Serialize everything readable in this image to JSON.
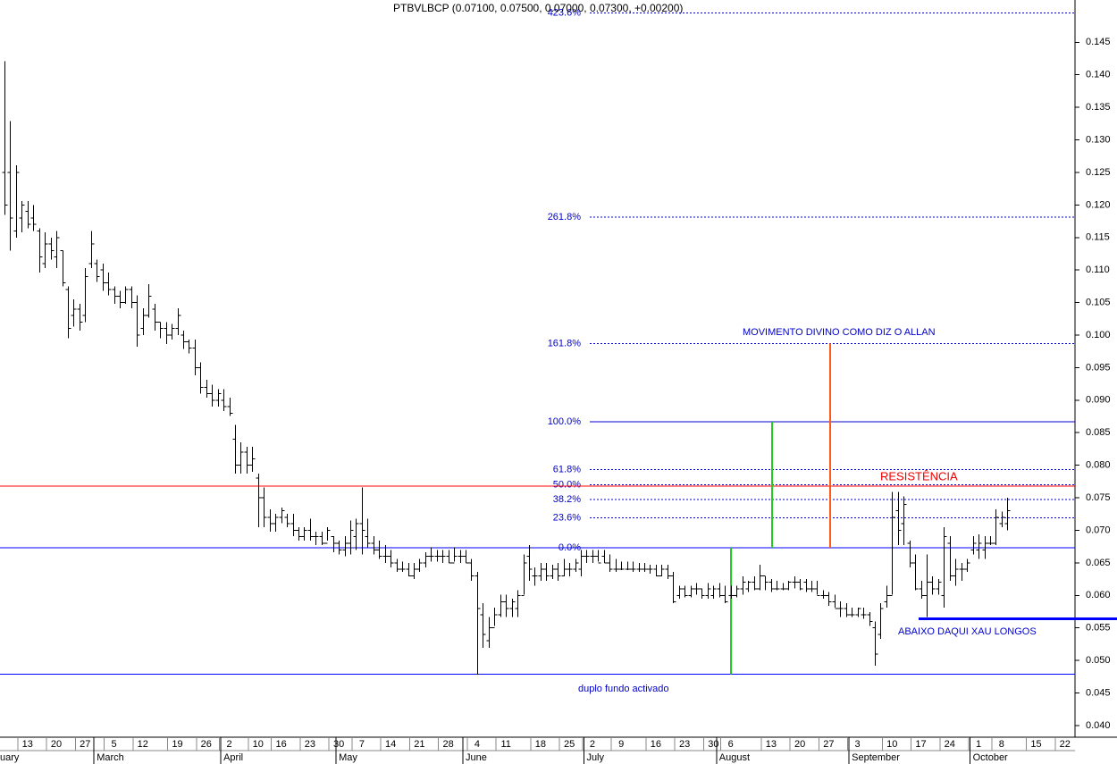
{
  "chart_data": {
    "type": "ohlc",
    "title": "PTBVLBCP (0.07100, 0.07500, 0.07000, 0.07300, +0.00200)",
    "categories": [
      null,
      null,
      null,
      null,
      "13",
      null,
      null,
      null,
      null,
      "20",
      null,
      null,
      null,
      null,
      "27",
      null,
      null,
      null,
      null,
      "5",
      null,
      null,
      null,
      null,
      "12",
      null,
      null,
      null,
      null,
      null,
      "19",
      null,
      null,
      null,
      null,
      "26",
      null,
      null,
      null,
      "2",
      null,
      null,
      null,
      null,
      "10",
      null,
      null,
      null,
      "16",
      null,
      null,
      null,
      null,
      "23",
      null,
      null,
      null,
      null,
      "30",
      null,
      null,
      null,
      "7",
      null,
      null,
      null,
      null,
      "14",
      null,
      null,
      null,
      null,
      "21",
      null,
      null,
      null,
      null,
      "28",
      null,
      null,
      null,
      null,
      "4",
      null,
      null,
      null,
      null,
      "11",
      null,
      null,
      null,
      null,
      null,
      "18",
      null,
      null,
      null,
      null,
      "25",
      null,
      null,
      null,
      "2",
      null,
      null,
      null,
      null,
      "9",
      null,
      null,
      null,
      null,
      null,
      "16",
      null,
      null,
      null,
      null,
      "23",
      null,
      null,
      null,
      null,
      "30",
      null,
      null,
      "6",
      null,
      null,
      null,
      null,
      null,
      null,
      "13",
      null,
      null,
      null,
      null,
      "20",
      null,
      null,
      null,
      null,
      "27",
      null,
      null,
      null,
      null,
      "3",
      null,
      null,
      null,
      null,
      null,
      "10",
      null,
      null,
      null,
      null,
      "17",
      null,
      null,
      null,
      null,
      "24",
      null,
      null,
      null,
      null,
      "1",
      null,
      null,
      null,
      "8",
      null,
      null,
      null,
      null,
      null,
      "15",
      null,
      null,
      null,
      null,
      "22"
    ],
    "months": [
      {
        "name": "uary",
        "start": 0
      },
      {
        "name": "March",
        "start": 16
      },
      {
        "name": "April",
        "start": 38
      },
      {
        "name": "May",
        "start": 58
      },
      {
        "name": "June",
        "start": 80
      },
      {
        "name": "July",
        "start": 101
      },
      {
        "name": "August",
        "start": 124
      },
      {
        "name": "September",
        "start": 147
      },
      {
        "name": "October",
        "start": 168
      }
    ],
    "ohlc": [
      [
        0.125,
        0.1421,
        0.1185,
        0.12
      ],
      [
        0.125,
        0.1329,
        0.113,
        0.118
      ],
      [
        0.116,
        0.1261,
        0.115,
        0.125
      ],
      [
        0.118,
        0.1206,
        0.1158,
        0.12
      ],
      [
        0.119,
        0.1206,
        0.1164,
        0.117
      ],
      [
        0.118,
        0.12,
        0.116,
        0.117
      ],
      [
        0.116,
        0.1164,
        0.1096,
        0.112
      ],
      [
        0.111,
        0.1158,
        0.1103,
        0.114
      ],
      [
        0.114,
        0.115,
        0.1116,
        0.113
      ],
      [
        0.112,
        0.116,
        0.1103,
        0.115
      ],
      [
        0.113,
        0.113,
        0.1075,
        0.108
      ],
      [
        0.107,
        0.1075,
        0.0995,
        0.101
      ],
      [
        0.103,
        0.1055,
        0.1013,
        0.104
      ],
      [
        0.104,
        0.1048,
        0.1007,
        0.102
      ],
      [
        0.103,
        0.1103,
        0.102,
        0.109
      ],
      [
        0.111,
        0.116,
        0.1103,
        0.114
      ],
      [
        0.111,
        0.1116,
        0.1082,
        0.109
      ],
      [
        0.11,
        0.111,
        0.1068,
        0.108
      ],
      [
        0.108,
        0.1096,
        0.1061,
        0.107
      ],
      [
        0.107,
        0.1075,
        0.1048,
        0.106
      ],
      [
        0.106,
        0.1068,
        0.1041,
        0.105
      ],
      [
        0.105,
        0.1075,
        0.1048,
        0.107
      ],
      [
        0.107,
        0.1075,
        0.1041,
        0.105
      ],
      [
        0.105,
        0.1061,
        0.0982,
        0.1
      ],
      [
        0.101,
        0.1041,
        0.1,
        0.103
      ],
      [
        0.103,
        0.1078,
        0.1027,
        0.106
      ],
      [
        0.104,
        0.1048,
        0.1007,
        0.102
      ],
      [
        0.102,
        0.102,
        0.0995,
        0.101
      ],
      [
        0.101,
        0.102,
        0.0986,
        0.1
      ],
      [
        0.1,
        0.1017,
        0.0993,
        0.101
      ],
      [
        0.101,
        0.1041,
        0.1,
        0.103
      ],
      [
        0.1,
        0.1007,
        0.0979,
        0.099
      ],
      [
        0.099,
        0.0993,
        0.0972,
        0.098
      ],
      [
        0.098,
        0.0993,
        0.0938,
        0.095
      ],
      [
        0.095,
        0.0958,
        0.091,
        0.092
      ],
      [
        0.092,
        0.0931,
        0.0904,
        0.091
      ],
      [
        0.091,
        0.0924,
        0.089,
        0.09
      ],
      [
        0.09,
        0.0917,
        0.089,
        0.091
      ],
      [
        0.09,
        0.0917,
        0.0883,
        0.089
      ],
      [
        0.089,
        0.0904,
        0.0876,
        0.088
      ],
      [
        0.084,
        0.0862,
        0.0787,
        0.08
      ],
      [
        0.08,
        0.0835,
        0.0787,
        0.082
      ],
      [
        0.082,
        0.0828,
        0.0787,
        0.08
      ],
      [
        0.08,
        0.0828,
        0.079,
        0.081
      ],
      [
        0.078,
        0.0787,
        0.0705,
        0.075
      ],
      [
        0.075,
        0.0766,
        0.0705,
        0.072
      ],
      [
        0.072,
        0.0732,
        0.0698,
        0.071
      ],
      [
        0.071,
        0.0725,
        0.0698,
        0.072
      ],
      [
        0.072,
        0.0735,
        0.0711,
        0.073
      ],
      [
        0.072,
        0.0725,
        0.0705,
        0.071
      ],
      [
        0.071,
        0.0725,
        0.0691,
        0.07
      ],
      [
        0.07,
        0.0705,
        0.0684,
        0.069
      ],
      [
        0.069,
        0.0705,
        0.0684,
        0.07
      ],
      [
        0.07,
        0.0718,
        0.0684,
        0.069
      ],
      [
        0.069,
        0.0698,
        0.0677,
        0.069
      ],
      [
        0.069,
        0.0698,
        0.0677,
        0.068
      ],
      [
        0.068,
        0.0705,
        0.0684,
        0.07
      ],
      [
        0.069,
        0.0691,
        0.0666,
        0.068
      ],
      [
        0.068,
        0.0684,
        0.0663,
        0.067
      ],
      [
        0.067,
        0.0691,
        0.066,
        0.068
      ],
      [
        0.068,
        0.0715,
        0.0663,
        0.07
      ],
      [
        0.069,
        0.0718,
        0.067,
        0.071
      ],
      [
        0.071,
        0.0766,
        0.0663,
        0.07
      ],
      [
        0.069,
        0.0718,
        0.0674,
        0.068
      ],
      [
        0.068,
        0.0691,
        0.0663,
        0.067
      ],
      [
        0.067,
        0.0684,
        0.0656,
        0.066
      ],
      [
        0.066,
        0.0677,
        0.065,
        0.066
      ],
      [
        0.066,
        0.067,
        0.0643,
        0.065
      ],
      [
        0.065,
        0.0656,
        0.0636,
        0.064
      ],
      [
        0.064,
        0.0652,
        0.0636,
        0.064
      ],
      [
        0.064,
        0.065,
        0.0629,
        0.063
      ],
      [
        0.063,
        0.065,
        0.0625,
        0.064
      ],
      [
        0.064,
        0.0656,
        0.0636,
        0.065
      ],
      [
        0.065,
        0.0666,
        0.0643,
        0.066
      ],
      [
        0.066,
        0.0674,
        0.0652,
        0.066
      ],
      [
        0.066,
        0.067,
        0.0652,
        0.066
      ],
      [
        0.066,
        0.067,
        0.065,
        0.066
      ],
      [
        0.066,
        0.067,
        0.065,
        0.065
      ],
      [
        0.065,
        0.0674,
        0.0652,
        0.066
      ],
      [
        0.066,
        0.067,
        0.065,
        0.066
      ],
      [
        0.066,
        0.067,
        0.065,
        0.065
      ],
      [
        0.065,
        0.0656,
        0.0622,
        0.063
      ],
      [
        0.063,
        0.0636,
        0.0478,
        0.058
      ],
      [
        0.057,
        0.0588,
        0.0519,
        0.054
      ],
      [
        0.053,
        0.0567,
        0.0519,
        0.055
      ],
      [
        0.055,
        0.0581,
        0.0553,
        0.057
      ],
      [
        0.057,
        0.0601,
        0.0567,
        0.059
      ],
      [
        0.059,
        0.0601,
        0.0567,
        0.058
      ],
      [
        0.058,
        0.0595,
        0.0567,
        0.059
      ],
      [
        0.058,
        0.0608,
        0.0567,
        0.06
      ],
      [
        0.06,
        0.0663,
        0.0601,
        0.065
      ],
      [
        0.066,
        0.0677,
        0.0622,
        0.064
      ],
      [
        0.063,
        0.0643,
        0.0615,
        0.063
      ],
      [
        0.063,
        0.065,
        0.0622,
        0.064
      ],
      [
        0.064,
        0.065,
        0.0622,
        0.063
      ],
      [
        0.063,
        0.0647,
        0.0625,
        0.064
      ],
      [
        0.064,
        0.065,
        0.0622,
        0.063
      ],
      [
        0.063,
        0.0656,
        0.0629,
        0.064
      ],
      [
        0.064,
        0.065,
        0.0629,
        0.064
      ],
      [
        0.064,
        0.0656,
        0.0636,
        0.065
      ],
      [
        0.064,
        0.067,
        0.0629,
        0.066
      ],
      [
        0.066,
        0.067,
        0.065,
        0.066
      ],
      [
        0.066,
        0.067,
        0.065,
        0.066
      ],
      [
        0.066,
        0.067,
        0.0652,
        0.065
      ],
      [
        0.066,
        0.067,
        0.065,
        0.065
      ],
      [
        0.065,
        0.0663,
        0.0636,
        0.064
      ],
      [
        0.064,
        0.0656,
        0.0636,
        0.064
      ],
      [
        0.064,
        0.0652,
        0.0639,
        0.064
      ],
      [
        0.064,
        0.0652,
        0.0639,
        0.064
      ],
      [
        0.064,
        0.0652,
        0.0636,
        0.064
      ],
      [
        0.064,
        0.065,
        0.0636,
        0.064
      ],
      [
        0.064,
        0.065,
        0.0636,
        0.064
      ],
      [
        0.064,
        0.0647,
        0.0633,
        0.064
      ],
      [
        0.064,
        0.0647,
        0.0629,
        0.063
      ],
      [
        0.063,
        0.0647,
        0.0629,
        0.064
      ],
      [
        0.064,
        0.0647,
        0.0625,
        0.063
      ],
      [
        0.063,
        0.0636,
        0.0588,
        0.059
      ],
      [
        0.06,
        0.0615,
        0.0595,
        0.061
      ],
      [
        0.061,
        0.0615,
        0.0597,
        0.06
      ],
      [
        0.06,
        0.0615,
        0.0597,
        0.061
      ],
      [
        0.061,
        0.0619,
        0.0601,
        0.061
      ],
      [
        0.061,
        0.0611,
        0.0595,
        0.06
      ],
      [
        0.06,
        0.0619,
        0.0595,
        0.061
      ],
      [
        0.06,
        0.0615,
        0.0595,
        0.061
      ],
      [
        0.061,
        0.0619,
        0.0597,
        0.06
      ],
      [
        0.06,
        0.0615,
        0.0588,
        0.059
      ],
      [
        0.06,
        0.0615,
        0.0595,
        0.06
      ],
      [
        0.06,
        0.0615,
        0.0597,
        0.061
      ],
      [
        0.061,
        0.0629,
        0.0601,
        0.062
      ],
      [
        0.061,
        0.0622,
        0.0605,
        0.062
      ],
      [
        0.062,
        0.0629,
        0.0608,
        0.061
      ],
      [
        0.061,
        0.0647,
        0.0608,
        0.063
      ],
      [
        0.063,
        0.0629,
        0.0608,
        0.062
      ],
      [
        0.062,
        0.0625,
        0.0605,
        0.061
      ],
      [
        0.061,
        0.0622,
        0.0608,
        0.061
      ],
      [
        0.061,
        0.0619,
        0.0608,
        0.061
      ],
      [
        0.061,
        0.0622,
        0.0608,
        0.062
      ],
      [
        0.062,
        0.0629,
        0.0611,
        0.062
      ],
      [
        0.062,
        0.0625,
        0.0608,
        0.061
      ],
      [
        0.062,
        0.0625,
        0.0605,
        0.061
      ],
      [
        0.061,
        0.0622,
        0.0605,
        0.061
      ],
      [
        0.061,
        0.0622,
        0.0601,
        0.06
      ],
      [
        0.06,
        0.0608,
        0.0595,
        0.06
      ],
      [
        0.06,
        0.0605,
        0.0584,
        0.059
      ],
      [
        0.059,
        0.0601,
        0.0581,
        0.058
      ],
      [
        0.058,
        0.0591,
        0.0567,
        0.058
      ],
      [
        0.058,
        0.0588,
        0.0567,
        0.057
      ],
      [
        0.057,
        0.0581,
        0.0567,
        0.057
      ],
      [
        0.057,
        0.0581,
        0.0567,
        0.058
      ],
      [
        0.057,
        0.0581,
        0.0564,
        0.057
      ],
      [
        0.057,
        0.0574,
        0.0553,
        0.056
      ],
      [
        0.055,
        0.056,
        0.0492,
        0.051
      ],
      [
        0.054,
        0.0588,
        0.0533,
        0.058
      ],
      [
        0.059,
        0.0615,
        0.0581,
        0.06
      ],
      [
        0.06,
        0.0759,
        0.0601,
        0.072
      ],
      [
        0.073,
        0.0759,
        0.0677,
        0.07
      ],
      [
        0.071,
        0.0752,
        0.0677,
        0.074
      ],
      [
        0.068,
        0.0684,
        0.0643,
        0.065
      ],
      [
        0.065,
        0.0663,
        0.0608,
        0.061
      ],
      [
        0.061,
        0.0622,
        0.0595,
        0.06
      ],
      [
        0.06,
        0.0663,
        0.0567,
        0.062
      ],
      [
        0.062,
        0.0629,
        0.0601,
        0.061
      ],
      [
        0.061,
        0.0625,
        0.0601,
        0.062
      ],
      [
        0.06,
        0.0705,
        0.0581,
        0.069
      ],
      [
        0.068,
        0.0691,
        0.0622,
        0.063
      ],
      [
        0.063,
        0.0656,
        0.0615,
        0.064
      ],
      [
        0.064,
        0.065,
        0.0622,
        0.064
      ],
      [
        0.064,
        0.0656,
        0.0636,
        0.065
      ],
      [
        0.067,
        0.0691,
        0.0663,
        0.068
      ],
      [
        0.067,
        0.0694,
        0.0656,
        0.068
      ],
      [
        0.067,
        0.0691,
        0.0656,
        0.068
      ],
      [
        0.068,
        0.0691,
        0.0677,
        0.068
      ],
      [
        0.068,
        0.0732,
        0.0677,
        0.072
      ],
      [
        0.071,
        0.0729,
        0.0705,
        0.072
      ],
      [
        0.071,
        0.075,
        0.07,
        0.073
      ],
      null,
      null,
      null,
      null,
      null,
      null,
      null,
      null,
      null,
      null
    ],
    "color": "#000000",
    "ylim": [
      0.0382,
      0.1515
    ],
    "yticks": [
      {
        "value": 0.04,
        "label": "0.040"
      },
      0.045,
      {
        "value": 0.05,
        "label": "0.050"
      },
      0.055,
      {
        "value": 0.06,
        "label": "0.060"
      },
      0.065,
      {
        "value": 0.07,
        "label": "0.070"
      },
      0.075,
      {
        "value": 0.08,
        "label": "0.080"
      },
      0.085,
      {
        "value": 0.09,
        "label": "0.090"
      },
      0.095,
      {
        "value": 0.1,
        "label": "0.100"
      },
      0.105,
      {
        "value": 0.11,
        "label": "0.110"
      },
      0.115,
      {
        "value": 0.12,
        "label": "0.120"
      },
      0.125,
      {
        "value": 0.13,
        "label": "0.130"
      },
      0.135,
      {
        "value": 0.14,
        "label": "0.140"
      },
      0.145
    ],
    "fibonacci": [
      {
        "value": 0.1495,
        "label": "423.6%",
        "style": "dotted"
      },
      {
        "value": 0.1181,
        "label": "261.8%",
        "style": "dotted"
      },
      {
        "value": 0.0987,
        "label": "161.8%",
        "style": "dotted"
      },
      {
        "value": 0.0867,
        "label": "100.0%",
        "style": "solid"
      },
      {
        "value": 0.0793,
        "label": "61.8%",
        "style": "dotted"
      },
      {
        "value": 0.077,
        "label": "50.0%",
        "style": "dotted"
      },
      {
        "value": 0.0747,
        "label": "38.2%",
        "style": "dotted"
      },
      {
        "value": 0.0719,
        "label": "23.6%",
        "style": "dotted"
      },
      {
        "value": 0.0673,
        "label": "0.0%",
        "style": "dotted"
      }
    ],
    "fib_color": "#0000cc",
    "levels": [
      {
        "value": 0.0768,
        "color": "#ff0000"
      },
      {
        "value": 0.0673,
        "color": "#0000ff"
      },
      {
        "value": 0.0479,
        "color": "#0000ff"
      }
    ],
    "support": {
      "value": 0.0564,
      "color": "#0000ff"
    },
    "vertical_lines": [
      {
        "from": 0.0479,
        "to": 0.0673,
        "color": "#22cc22"
      },
      {
        "from": 0.0673,
        "to": 0.0867,
        "color": "#22cc22"
      },
      {
        "from": 0.0673,
        "to": 0.0987,
        "color": "#ff5a1a"
      }
    ],
    "annotations": [
      {
        "text": "MOVIMENTO DIVINO COMO DIZ O ALLAN",
        "color": "#0000cc"
      },
      {
        "text": "RESISTÊNCIA",
        "color": "#ee0000"
      },
      {
        "text": "ABAIXO DAQUI XAU LONGOS",
        "color": "#0000cc"
      },
      {
        "text": "duplo fundo activado",
        "color": "#0000cc"
      }
    ]
  }
}
